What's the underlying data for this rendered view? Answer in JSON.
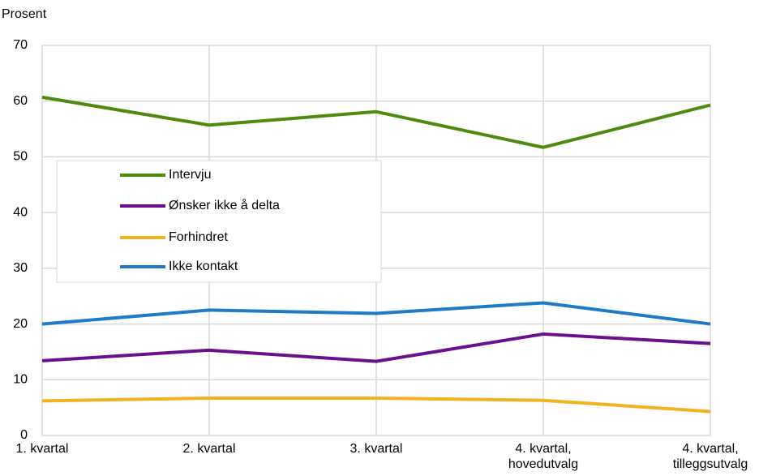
{
  "chart_data": {
    "type": "line",
    "y_label": "Prosent",
    "categories": [
      "1. kvartal",
      "2. kvartal",
      "3. kvartal",
      "4. kvartal, hovedutvalg",
      "4. kvartal, tilleggsutvalg"
    ],
    "series": [
      {
        "name": "Intervju",
        "color": "#4e8a0e",
        "values": [
          60.7,
          55.7,
          58.1,
          51.7,
          59.3
        ]
      },
      {
        "name": "Ønsker ikke å delta",
        "color": "#6a0f8e",
        "values": [
          13.4,
          15.3,
          13.3,
          18.2,
          16.5
        ]
      },
      {
        "name": "Forhindret",
        "color": "#f0b41e",
        "values": [
          6.2,
          6.7,
          6.7,
          6.3,
          4.3
        ]
      },
      {
        "name": "Ikke kontakt",
        "color": "#1f7bc8",
        "values": [
          20.0,
          22.5,
          21.9,
          23.8,
          20.0
        ]
      }
    ],
    "ylim": [
      0,
      70
    ],
    "yticks": [
      0,
      10,
      20,
      30,
      40,
      50,
      60,
      70
    ],
    "grid": true
  }
}
